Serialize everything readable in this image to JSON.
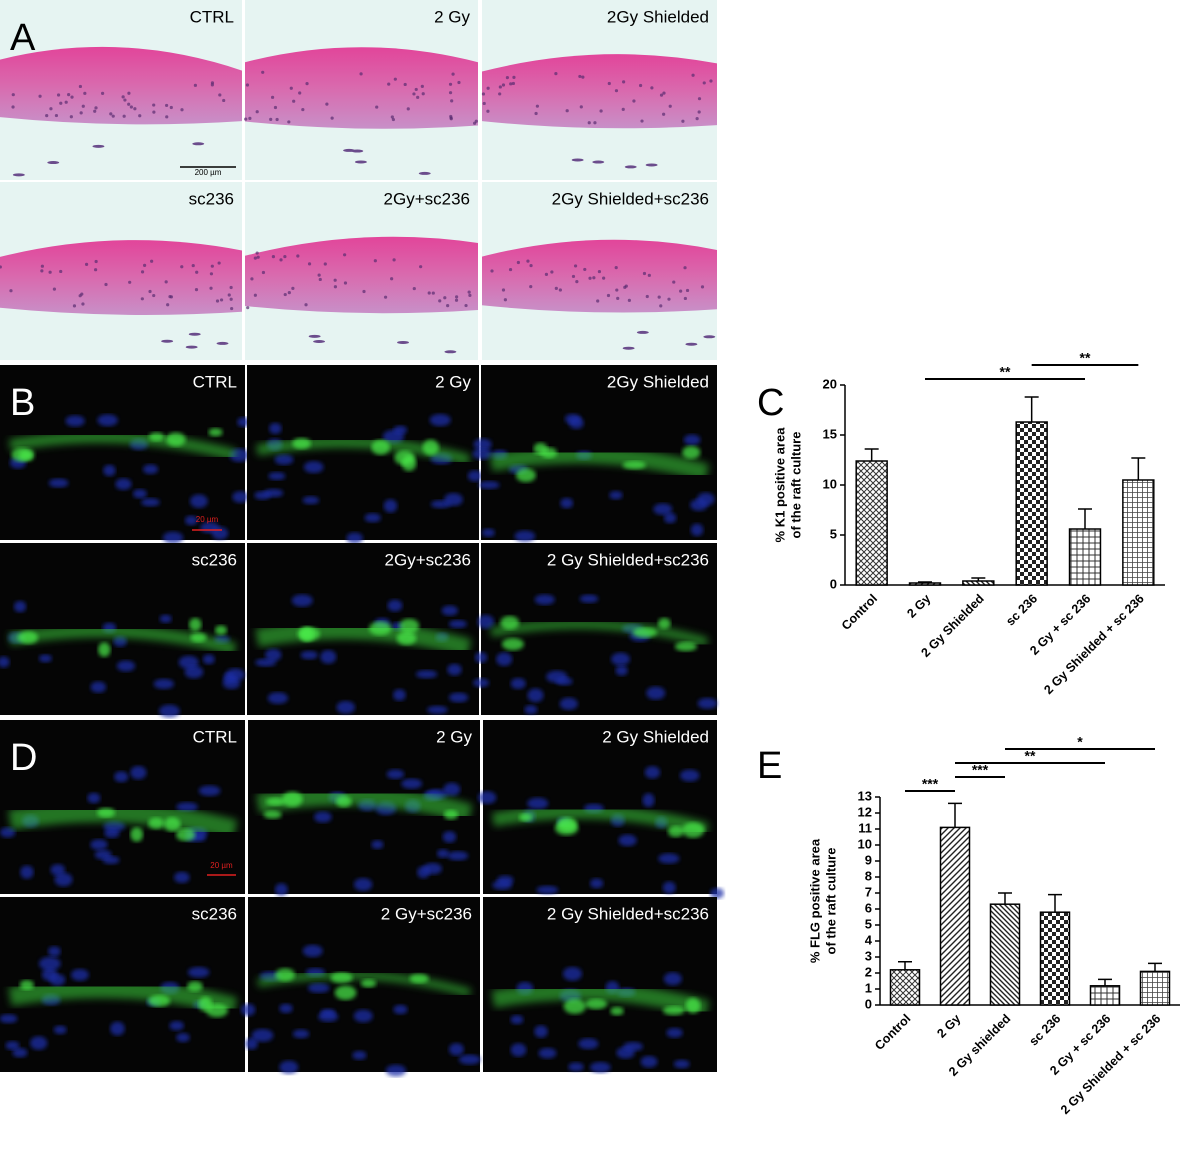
{
  "panels": [
    {
      "letter": "A",
      "labels": [
        "CTRL",
        "2 Gy",
        "2Gy Shielded",
        "sc236",
        "2Gy+sc236",
        "2Gy Shielded+sc236"
      ],
      "scale_bar": "200 µm"
    },
    {
      "letter": "B",
      "labels": [
        "CTRL",
        "2 Gy",
        "2Gy Shielded",
        "sc236",
        "2Gy+sc236",
        "2 Gy Shielded+sc236"
      ],
      "scale_bar": "20 µm"
    },
    {
      "letter": "D",
      "labels": [
        "CTRL",
        "2 Gy",
        "2 Gy Shielded",
        "sc236",
        "2 Gy+sc236",
        "2 Gy Shielded+sc236"
      ],
      "scale_bar": "20 µm"
    }
  ],
  "chart_data": [
    {
      "type": "bar",
      "letter": "C",
      "y_label": [
        "% K1 positive area",
        "of the raft culture"
      ],
      "categories": [
        "Control",
        "2 Gy",
        "2 Gy Shielded",
        "sc 236",
        "2 Gy + sc 236",
        "2 Gy Shielded + sc 236"
      ],
      "values": [
        12.4,
        0.2,
        0.4,
        16.3,
        5.6,
        10.5
      ],
      "errors": [
        1.2,
        0.1,
        0.3,
        2.5,
        2.0,
        2.2
      ],
      "ylim": [
        0,
        20
      ],
      "yticks": [
        0,
        5,
        10,
        15,
        20
      ],
      "annotations": [
        {
          "text": "**",
          "between": [
            "2 Gy",
            "2 Gy + sc 236"
          ]
        },
        {
          "text": "**",
          "between": [
            "sc 236",
            "2 Gy Shielded + sc 236"
          ]
        }
      ]
    },
    {
      "type": "bar",
      "letter": "E",
      "y_label": [
        "% FLG positive area",
        "of the raft culture"
      ],
      "categories": [
        "Control",
        "2 Gy",
        "2 Gy shielded",
        "sc 236",
        "2 Gy + sc 236",
        "2 Gy Shielded + sc 236"
      ],
      "values": [
        2.2,
        11.1,
        6.3,
        5.8,
        1.2,
        2.1
      ],
      "errors": [
        0.5,
        1.5,
        0.7,
        1.1,
        0.4,
        0.5
      ],
      "ylim": [
        0,
        13
      ],
      "yticks": [
        0,
        1,
        2,
        3,
        4,
        5,
        6,
        7,
        8,
        9,
        10,
        11,
        12,
        13
      ],
      "annotations": [
        {
          "text": "***",
          "between": [
            "Control",
            "2 Gy"
          ]
        },
        {
          "text": "***",
          "between": [
            "2 Gy",
            "2 Gy shielded"
          ]
        },
        {
          "text": "**",
          "between": [
            "2 Gy",
            "2 Gy + sc 236"
          ]
        },
        {
          "text": "*",
          "between": [
            "2 Gy shielded",
            "2 Gy Shielded + sc 236"
          ]
        }
      ]
    }
  ]
}
